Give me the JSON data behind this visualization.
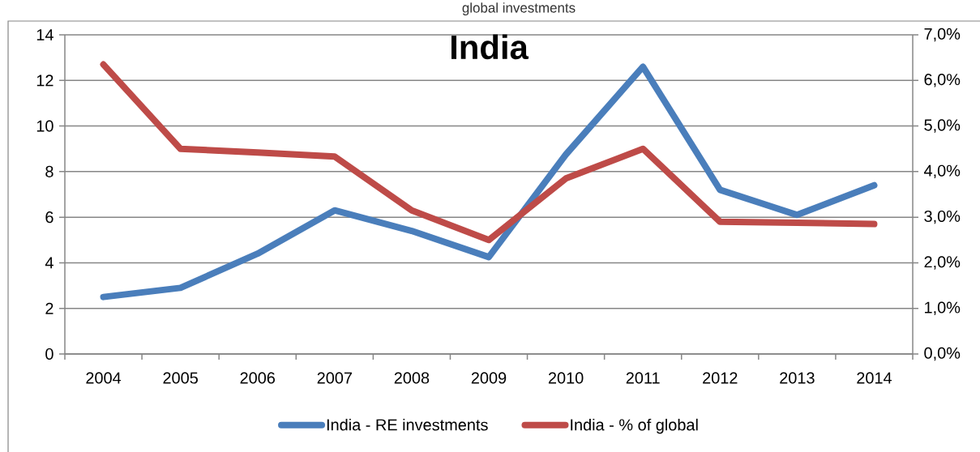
{
  "chart_data": {
    "type": "line",
    "title": "India",
    "annotations": [
      "global investments"
    ],
    "categories": [
      "2004",
      "2005",
      "2006",
      "2007",
      "2008",
      "2009",
      "2010",
      "2011",
      "2012",
      "2013",
      "2014"
    ],
    "series": [
      {
        "name": "India - RE investments",
        "color": "#4a7ebb",
        "values": [
          2.5,
          2.9,
          4.4,
          6.3,
          5.4,
          4.25,
          8.75,
          12.6,
          7.2,
          6.1,
          7.4
        ]
      },
      {
        "name": "India - % of global",
        "color": "#be4b48",
        "axis": "y2",
        "values": [
          6.35,
          4.5,
          4.42,
          4.33,
          3.15,
          2.5,
          3.85,
          4.5,
          2.9,
          2.88,
          2.85
        ]
      }
    ],
    "ylim": [
      0,
      14
    ],
    "yticks": [
      0,
      2,
      4,
      6,
      8,
      10,
      12,
      14
    ],
    "y2lim": [
      0,
      7
    ],
    "y2ticks": [
      {
        "value": 0,
        "label": "0,0%"
      },
      {
        "value": 1,
        "label": "1,0%"
      },
      {
        "value": 2,
        "label": "2,0%"
      },
      {
        "value": 3,
        "label": "3,0%"
      },
      {
        "value": 4,
        "label": "4,0%"
      },
      {
        "value": 5,
        "label": "5,0%"
      },
      {
        "value": 6,
        "label": "6,0%"
      },
      {
        "value": 7,
        "label": "7,0%"
      }
    ],
    "grid": "y",
    "legend": "bottom",
    "marker": "none",
    "line_style": "solid"
  }
}
